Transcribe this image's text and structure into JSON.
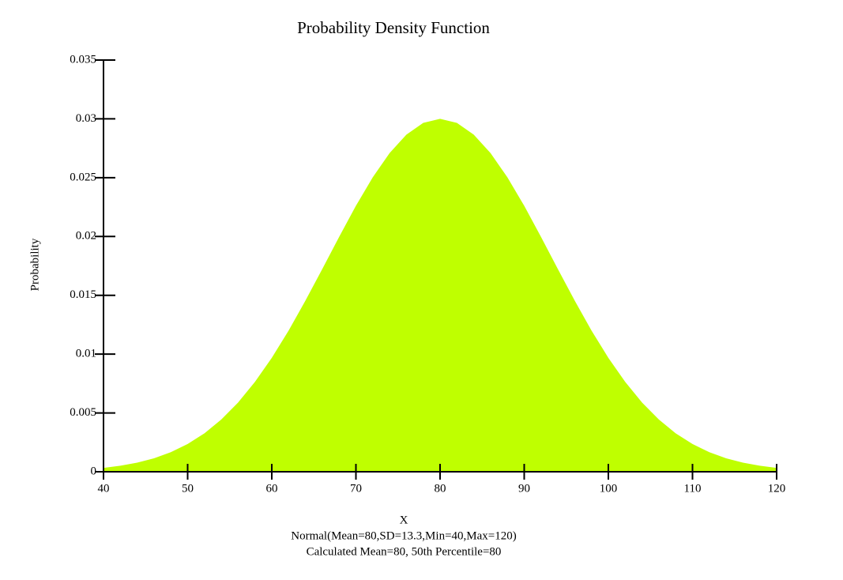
{
  "chart_data": {
    "type": "area",
    "title": "Probability Density Function",
    "x_label": "X",
    "y_label": "Probability",
    "notes": [
      "Normal(Mean=80,SD=13.3,Min=40,Max=120)",
      "Calculated Mean=80, 50th Percentile=80"
    ],
    "color": "#bfff00",
    "x": [
      40,
      42,
      44,
      46,
      48,
      50,
      52,
      54,
      56,
      58,
      60,
      62,
      64,
      66,
      68,
      70,
      72,
      74,
      76,
      78,
      80,
      82,
      84,
      86,
      88,
      90,
      92,
      94,
      96,
      98,
      100,
      102,
      104,
      106,
      108,
      110,
      112,
      114,
      116,
      118,
      120
    ],
    "values": [
      0.00033,
      0.00051,
      0.00077,
      0.00114,
      0.00166,
      0.00236,
      0.00327,
      0.00444,
      0.00589,
      0.00764,
      0.00968,
      0.012,
      0.01455,
      0.01723,
      0.01996,
      0.02261,
      0.02503,
      0.02709,
      0.02866,
      0.02966,
      0.03,
      0.02966,
      0.02866,
      0.02709,
      0.02503,
      0.02261,
      0.01996,
      0.01723,
      0.01455,
      0.012,
      0.00968,
      0.00764,
      0.00589,
      0.00444,
      0.00327,
      0.00236,
      0.00166,
      0.00114,
      0.00077,
      0.00051,
      0.00033
    ],
    "xlim": [
      40,
      120
    ],
    "xticks": [
      40,
      50,
      60,
      70,
      80,
      90,
      100,
      110,
      120
    ],
    "ylim": [
      0,
      0.035
    ],
    "yticks": [
      0,
      0.005,
      0.01,
      0.015,
      0.02,
      0.025,
      0.03,
      0.035
    ]
  }
}
